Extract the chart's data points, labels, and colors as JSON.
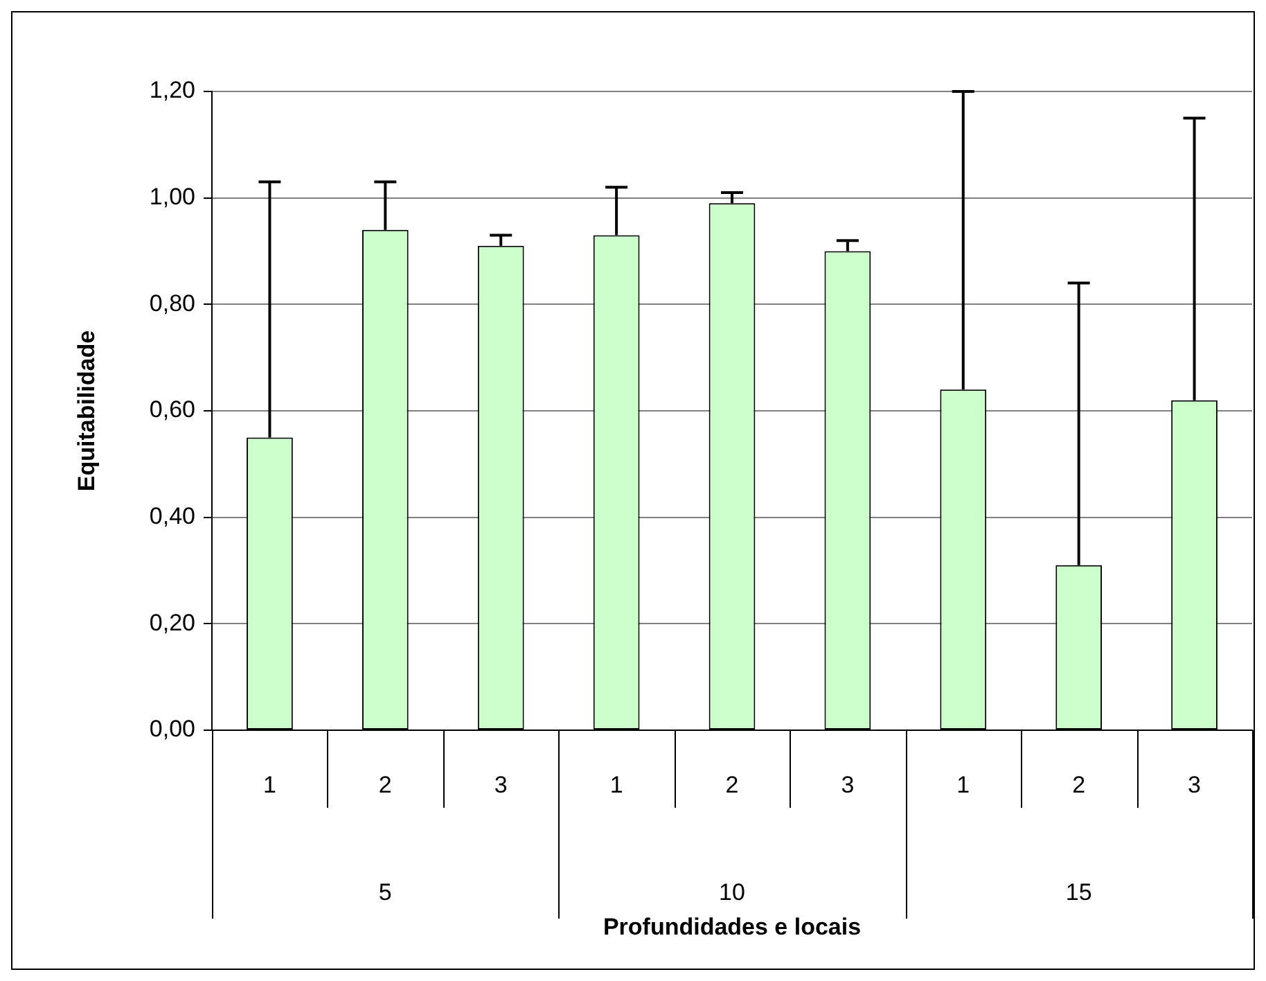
{
  "chart_data": {
    "type": "bar",
    "xlabel": "Profundidades e locais",
    "ylabel": "Equitabilidade",
    "categories": [
      "1",
      "2",
      "3",
      "1",
      "2",
      "3",
      "1",
      "2",
      "3"
    ],
    "values": [
      0.55,
      0.94,
      0.91,
      0.93,
      0.99,
      0.9,
      0.64,
      0.31,
      0.62
    ],
    "errors": [
      [
        0.55,
        1.03
      ],
      [
        0.94,
        1.03
      ],
      [
        0.91,
        0.93
      ],
      [
        0.93,
        1.02
      ],
      [
        0.99,
        1.01
      ],
      [
        0.9,
        0.92
      ],
      [
        0.64,
        1.2
      ],
      [
        0.31,
        0.84
      ],
      [
        0.62,
        1.15
      ]
    ],
    "color": "#ccffcc",
    "ylim": [
      0,
      1.2
    ],
    "yticks": [
      {
        "value": 0,
        "label": "0,00"
      },
      {
        "value": 0.2,
        "label": "0,20"
      },
      {
        "value": 0.4,
        "label": "0,40"
      },
      {
        "value": 0.6,
        "label": "0,60"
      },
      {
        "value": 0.8,
        "label": "0,80"
      },
      {
        "value": 1,
        "label": "1,00"
      },
      {
        "value": 1.2,
        "label": "1,20"
      }
    ],
    "annotations": [
      "5",
      "10",
      "15"
    ],
    "grid": "y",
    "legend": false
  }
}
